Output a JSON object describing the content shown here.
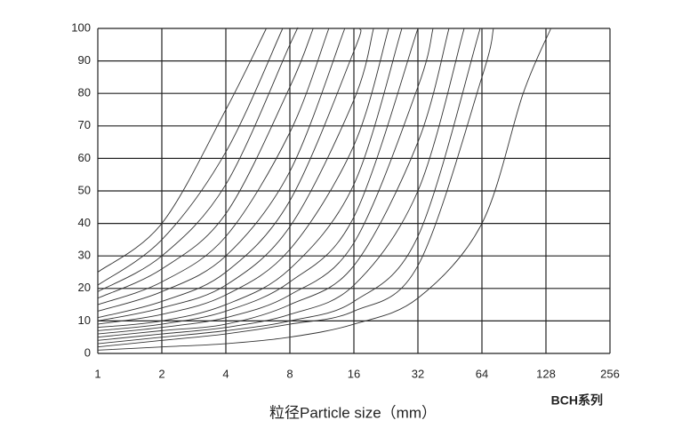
{
  "chart_data": {
    "type": "line",
    "xscale": "log2",
    "grid": true,
    "xlabel": "粒径Particle size（mm）",
    "annotation": "BCH系列",
    "xlim": [
      1,
      256
    ],
    "xticks": [
      1,
      2,
      4,
      8,
      16,
      32,
      64,
      128,
      256
    ],
    "ylim": [
      0,
      100
    ],
    "yticks": [
      0,
      10,
      20,
      30,
      40,
      50,
      60,
      70,
      80,
      90,
      100
    ],
    "series": [
      {
        "color": "#333333",
        "x": [
          1,
          2,
          4,
          6.2
        ],
        "values": [
          25,
          40,
          75,
          100
        ]
      },
      {
        "color": "#333333",
        "x": [
          1,
          2,
          4,
          7.4
        ],
        "values": [
          21,
          35,
          62,
          100
        ]
      },
      {
        "color": "#333333",
        "x": [
          1,
          2,
          4,
          8,
          8.7
        ],
        "values": [
          19,
          30,
          52,
          95,
          100
        ]
      },
      {
        "color": "#333333",
        "x": [
          1,
          2,
          4,
          8,
          10.3
        ],
        "values": [
          17,
          26,
          43,
          82,
          100
        ]
      },
      {
        "color": "#333333",
        "x": [
          1,
          2,
          4,
          8,
          12.2
        ],
        "values": [
          15,
          22,
          36,
          68,
          100
        ]
      },
      {
        "color": "#333333",
        "x": [
          1,
          2,
          4,
          8,
          14.5
        ],
        "values": [
          13,
          19,
          30,
          56,
          100
        ]
      },
      {
        "color": "#333333",
        "x": [
          1,
          2,
          4,
          8,
          16,
          17.1
        ],
        "values": [
          11,
          16,
          25,
          47,
          93,
          100
        ]
      },
      {
        "color": "#333333",
        "x": [
          1,
          2,
          4,
          8,
          16,
          19.8
        ],
        "values": [
          10,
          14,
          21,
          39,
          78,
          100
        ]
      },
      {
        "color": "#333333",
        "x": [
          1,
          2,
          4,
          8,
          16,
          23.3
        ],
        "values": [
          9,
          12,
          18,
          32,
          64,
          100
        ]
      },
      {
        "color": "#333333",
        "x": [
          1,
          2,
          4,
          8,
          16,
          26.9
        ],
        "values": [
          8,
          10,
          15,
          26,
          52,
          100
        ]
      },
      {
        "color": "#333333",
        "x": [
          1,
          2,
          4,
          8,
          16,
          32
        ],
        "values": [
          7,
          9,
          13,
          22,
          42,
          100
        ]
      },
      {
        "color": "#333333",
        "x": [
          1,
          2,
          4,
          8,
          16,
          32,
          37.7
        ],
        "values": [
          6,
          8,
          11,
          18,
          34,
          82,
          100
        ]
      },
      {
        "color": "#333333",
        "x": [
          1,
          2,
          4,
          8,
          16,
          32,
          44.8
        ],
        "values": [
          5,
          7,
          9,
          15,
          27,
          65,
          100
        ]
      },
      {
        "color": "#333333",
        "x": [
          1,
          2,
          4,
          8,
          16,
          32,
          52.8
        ],
        "values": [
          4,
          6,
          8,
          12,
          21,
          50,
          100
        ]
      },
      {
        "color": "#333333",
        "x": [
          1,
          2,
          4,
          8,
          16,
          32,
          62.8
        ],
        "values": [
          3,
          5,
          7,
          10,
          16,
          36,
          100
        ]
      },
      {
        "color": "#333333",
        "x": [
          1,
          2,
          4,
          8,
          16,
          32,
          64,
          72.5
        ],
        "values": [
          2,
          4,
          6,
          9,
          13,
          27,
          85,
          100
        ]
      },
      {
        "color": "#333333",
        "x": [
          1,
          2,
          4,
          8,
          16,
          32,
          64,
          100,
          135
        ],
        "values": [
          1,
          2,
          3,
          5,
          9,
          17,
          40,
          80,
          100
        ]
      }
    ]
  }
}
